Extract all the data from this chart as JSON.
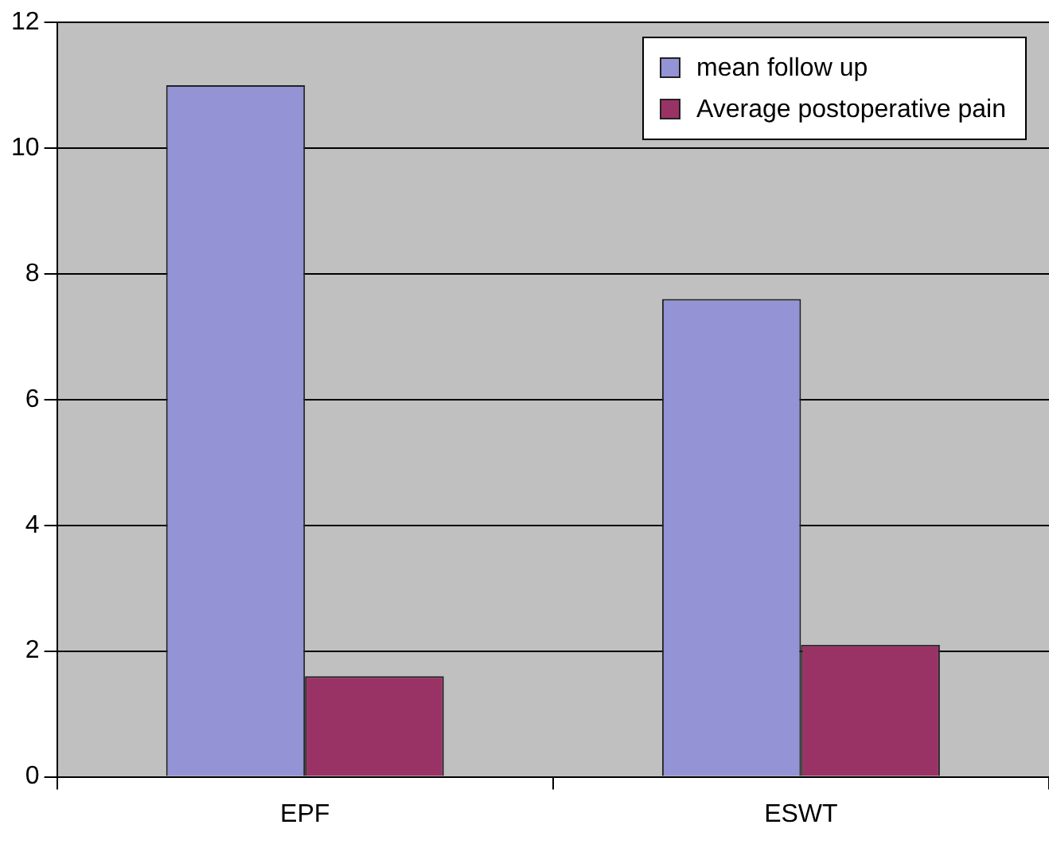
{
  "chart_data": {
    "type": "bar",
    "categories": [
      "EPF",
      "ESWT"
    ],
    "series": [
      {
        "name": "mean follow up",
        "color": "#9393d6",
        "values": [
          11,
          7.6
        ]
      },
      {
        "name": "Average postoperative pain",
        "color": "#993366",
        "values": [
          1.6,
          2.1
        ]
      }
    ],
    "ylim": [
      0,
      12
    ],
    "yticks": [
      0,
      2,
      4,
      6,
      8,
      10,
      12
    ],
    "grid": "y",
    "legend": "top right"
  }
}
